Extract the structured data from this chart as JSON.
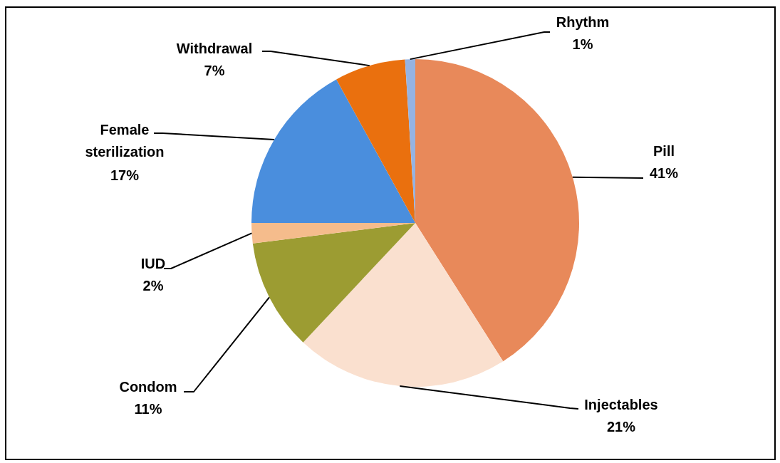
{
  "chart_data": {
    "type": "pie",
    "categories": [
      "Pill",
      "Injectables",
      "Condom",
      "IUD",
      "Female sterilization",
      "Withdrawal",
      "Rhythm"
    ],
    "values": [
      41,
      21,
      11,
      2,
      17,
      7,
      1
    ],
    "colors": [
      "#e8895a",
      "#fae0cf",
      "#9c9c32",
      "#f5bc8c",
      "#4a8edd",
      "#ea700e",
      "#95b3e2"
    ],
    "value_labels": [
      "41%",
      "21%",
      "11%",
      "2%",
      "17%",
      "7%",
      "1%"
    ]
  }
}
